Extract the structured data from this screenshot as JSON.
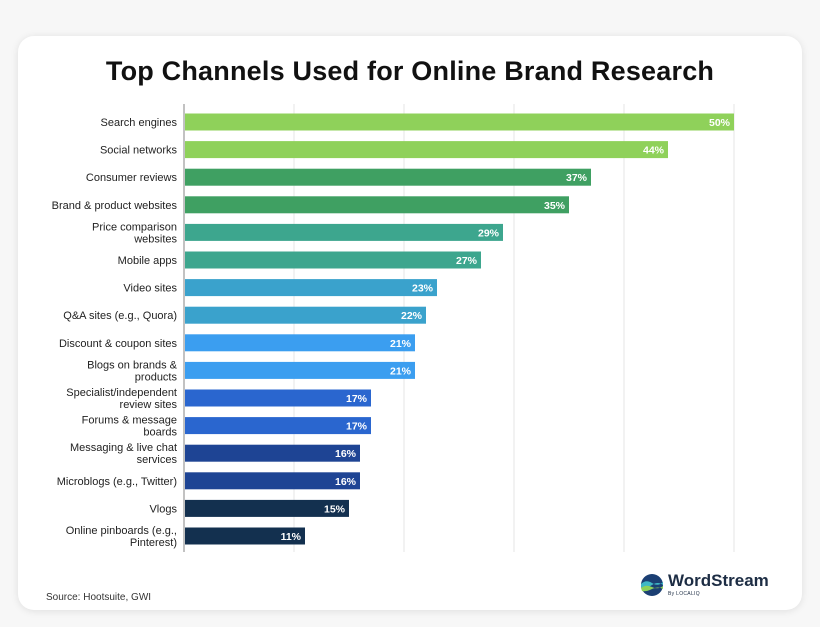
{
  "title": "Top Channels Used for Online Brand Research",
  "source": "Source: Hootsuite, GWI",
  "logo": {
    "name": "WordStream",
    "sub": "By LOCALIQ"
  },
  "colors": {
    "background": "#ffffff",
    "grid": "#e6e6e6",
    "axis": "#999999",
    "label": "#222222",
    "value_label": "#ffffff"
  },
  "chart_data": {
    "type": "bar",
    "orientation": "horizontal",
    "title": "Top Channels Used for Online Brand Research",
    "xlim": [
      0,
      50
    ],
    "grid": true,
    "value_suffix": "%",
    "categories": [
      "Search engines",
      "Social networks",
      "Consumer reviews",
      "Brand & product websites",
      "Price comparison websites",
      "Mobile apps",
      "Video sites",
      "Q&A sites (e.g., Quora)",
      "Discount & coupon sites",
      "Blogs on brands & products",
      "Specialist/independent review sites",
      "Forums & message boards",
      "Messaging & live chat services",
      "Microblogs (e.g., Twitter)",
      "Vlogs",
      "Online pinboards (e.g., Pinterest)"
    ],
    "label_lines": [
      [
        "Search engines"
      ],
      [
        "Social networks"
      ],
      [
        "Consumer reviews"
      ],
      [
        "Brand & product websites"
      ],
      [
        "Price comparison",
        "websites"
      ],
      [
        "Mobile apps"
      ],
      [
        "Video sites"
      ],
      [
        "Q&A sites (e.g., Quora)"
      ],
      [
        "Discount & coupon sites"
      ],
      [
        "Blogs on brands &",
        "products"
      ],
      [
        "Specialist/independent",
        "review sites"
      ],
      [
        "Forums & message",
        "boards"
      ],
      [
        "Messaging & live chat",
        "services"
      ],
      [
        "Microblogs (e.g., Twitter)"
      ],
      [
        "Vlogs"
      ],
      [
        "Online pinboards (e.g.,",
        "Pinterest)"
      ]
    ],
    "values": [
      50,
      44,
      37,
      35,
      29,
      27,
      23,
      22,
      21,
      21,
      17,
      17,
      16,
      16,
      15,
      11
    ],
    "bar_colors": [
      "#8fd15a",
      "#8fd15a",
      "#3fa062",
      "#3fa062",
      "#3da68e",
      "#3da68e",
      "#3aa2cc",
      "#3aa2cc",
      "#3b9ef0",
      "#3b9ef0",
      "#2a66cf",
      "#2a66cf",
      "#1e4494",
      "#1e4494",
      "#13304f",
      "#13304f"
    ]
  }
}
